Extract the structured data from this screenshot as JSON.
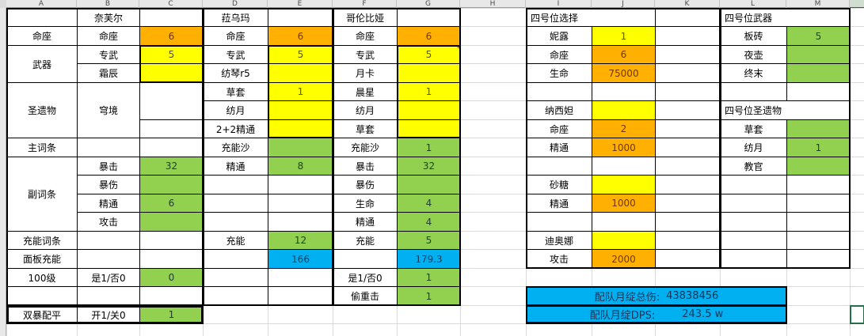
{
  "colors": {
    "orange": "#FFB000",
    "yellow": "#FFFF00",
    "green": "#92D050",
    "blue": "#00B0F0",
    "selection_green": "#217346"
  },
  "column_headers": [
    "A",
    "B",
    "C",
    "D",
    "E",
    "F",
    "G",
    "H",
    "I",
    "J",
    "K",
    "L",
    "M"
  ],
  "tables": [
    {
      "name": "nefer",
      "cells": [
        {
          "r": 1,
          "c": "A",
          "t": ""
        },
        {
          "r": 1,
          "c": "B",
          "t": "奈芙尔"
        },
        {
          "r": 1,
          "c": "C",
          "t": ""
        },
        {
          "r": 2,
          "c": "A",
          "t": "命座"
        },
        {
          "r": 2,
          "c": "B",
          "t": "命座"
        },
        {
          "r": 2,
          "c": "C",
          "t": "6",
          "f": "orange"
        },
        {
          "r": 3,
          "c": "A",
          "t": "武器",
          "rs": 2
        },
        {
          "r": 3,
          "c": "B",
          "t": "专武"
        },
        {
          "r": 3,
          "c": "C",
          "t": "5",
          "f": "yellow"
        },
        {
          "r": 4,
          "c": "B",
          "t": "霜辰"
        },
        {
          "r": 4,
          "c": "C",
          "t": "",
          "f": "yellow"
        },
        {
          "r": 5,
          "c": "A",
          "t": "圣遗物",
          "rs": 3
        },
        {
          "r": 5,
          "c": "B",
          "t": "穹境",
          "rs": 3
        },
        {
          "r": 5,
          "c": "C",
          "t": "",
          "rs": 2
        },
        {
          "r": 7,
          "c": "C",
          "t": ""
        },
        {
          "r": 8,
          "c": "A",
          "t": "主词条"
        },
        {
          "r": 8,
          "c": "B",
          "t": ""
        },
        {
          "r": 8,
          "c": "C",
          "t": ""
        },
        {
          "r": 9,
          "c": "A",
          "t": "副词条",
          "rs": 4
        },
        {
          "r": 9,
          "c": "B",
          "t": "暴击"
        },
        {
          "r": 9,
          "c": "C",
          "t": "32",
          "f": "green"
        },
        {
          "r": 10,
          "c": "B",
          "t": "暴伤"
        },
        {
          "r": 10,
          "c": "C",
          "t": "",
          "f": "green"
        },
        {
          "r": 11,
          "c": "B",
          "t": "精通"
        },
        {
          "r": 11,
          "c": "C",
          "t": "6",
          "f": "green"
        },
        {
          "r": 12,
          "c": "B",
          "t": "攻击"
        },
        {
          "r": 12,
          "c": "C",
          "t": "",
          "f": "green"
        },
        {
          "r": 13,
          "c": "A",
          "t": "充能词条"
        },
        {
          "r": 13,
          "c": "B",
          "t": ""
        },
        {
          "r": 13,
          "c": "C",
          "t": ""
        },
        {
          "r": 14,
          "c": "A",
          "t": "面板充能"
        },
        {
          "r": 14,
          "c": "B",
          "t": ""
        },
        {
          "r": 14,
          "c": "C",
          "t": ""
        },
        {
          "r": 15,
          "c": "A",
          "t": "100级"
        },
        {
          "r": 15,
          "c": "B",
          "t": "是1/否0"
        },
        {
          "r": 15,
          "c": "C",
          "t": "0",
          "f": "green"
        },
        {
          "r": 16,
          "c": "A",
          "t": ""
        },
        {
          "r": 16,
          "c": "B",
          "t": ""
        },
        {
          "r": 16,
          "c": "C",
          "t": ""
        },
        {
          "r": 17,
          "c": "A",
          "t": "双暴配平"
        },
        {
          "r": 17,
          "c": "B",
          "t": "开1/关0"
        },
        {
          "r": 17,
          "c": "C",
          "t": "1",
          "f": "green"
        }
      ]
    },
    {
      "name": "lauma",
      "cells": [
        {
          "r": 1,
          "c": "D",
          "t": "菈乌玛"
        },
        {
          "r": 1,
          "c": "E",
          "t": ""
        },
        {
          "r": 2,
          "c": "D",
          "t": "命座"
        },
        {
          "r": 2,
          "c": "E",
          "t": "6",
          "f": "orange"
        },
        {
          "r": 3,
          "c": "D",
          "t": "专武"
        },
        {
          "r": 3,
          "c": "E",
          "t": "5",
          "f": "yellow"
        },
        {
          "r": 4,
          "c": "D",
          "t": "纺琴r5"
        },
        {
          "r": 4,
          "c": "E",
          "t": "",
          "f": "yellow"
        },
        {
          "r": 5,
          "c": "D",
          "t": "草套"
        },
        {
          "r": 5,
          "c": "E",
          "t": "1",
          "f": "yellow"
        },
        {
          "r": 6,
          "c": "D",
          "t": "纺月"
        },
        {
          "r": 6,
          "c": "E",
          "t": "",
          "f": "yellow"
        },
        {
          "r": 7,
          "c": "D",
          "t": "2+2精通"
        },
        {
          "r": 7,
          "c": "E",
          "t": "",
          "f": "yellow"
        },
        {
          "r": 8,
          "c": "D",
          "t": "充能沙"
        },
        {
          "r": 8,
          "c": "E",
          "t": "",
          "f": "green"
        },
        {
          "r": 9,
          "c": "D",
          "t": "精通"
        },
        {
          "r": 9,
          "c": "E",
          "t": "8",
          "f": "green"
        },
        {
          "r": 10,
          "c": "D",
          "t": ""
        },
        {
          "r": 10,
          "c": "E",
          "t": ""
        },
        {
          "r": 11,
          "c": "D",
          "t": ""
        },
        {
          "r": 11,
          "c": "E",
          "t": ""
        },
        {
          "r": 12,
          "c": "D",
          "t": ""
        },
        {
          "r": 12,
          "c": "E",
          "t": ""
        },
        {
          "r": 13,
          "c": "D",
          "t": "充能"
        },
        {
          "r": 13,
          "c": "E",
          "t": "12",
          "f": "green"
        },
        {
          "r": 14,
          "c": "D",
          "t": ""
        },
        {
          "r": 14,
          "c": "E",
          "t": "166",
          "f": "blue"
        },
        {
          "r": 15,
          "c": "D",
          "t": ""
        },
        {
          "r": 15,
          "c": "E",
          "t": ""
        },
        {
          "r": 16,
          "c": "D",
          "t": ""
        },
        {
          "r": 16,
          "c": "E",
          "t": ""
        }
      ]
    },
    {
      "name": "columbina",
      "cells": [
        {
          "r": 1,
          "c": "F",
          "t": "哥伦比娅"
        },
        {
          "r": 1,
          "c": "G",
          "t": ""
        },
        {
          "r": 2,
          "c": "F",
          "t": "命座"
        },
        {
          "r": 2,
          "c": "G",
          "t": "6",
          "f": "orange"
        },
        {
          "r": 3,
          "c": "F",
          "t": "专武"
        },
        {
          "r": 3,
          "c": "G",
          "t": "5",
          "f": "yellow",
          "m": 1
        },
        {
          "r": 4,
          "c": "F",
          "t": "月卡"
        },
        {
          "r": 4,
          "c": "G",
          "t": "",
          "f": "yellow"
        },
        {
          "r": 5,
          "c": "F",
          "t": "晨星"
        },
        {
          "r": 5,
          "c": "G",
          "t": "1",
          "f": "yellow"
        },
        {
          "r": 6,
          "c": "F",
          "t": "纺月"
        },
        {
          "r": 6,
          "c": "G",
          "t": "",
          "f": "yellow"
        },
        {
          "r": 7,
          "c": "F",
          "t": "草套"
        },
        {
          "r": 7,
          "c": "G",
          "t": "",
          "f": "yellow"
        },
        {
          "r": 8,
          "c": "F",
          "t": "充能沙"
        },
        {
          "r": 8,
          "c": "G",
          "t": "1",
          "f": "green"
        },
        {
          "r": 9,
          "c": "F",
          "t": "暴击"
        },
        {
          "r": 9,
          "c": "G",
          "t": "32",
          "f": "green"
        },
        {
          "r": 10,
          "c": "F",
          "t": "暴伤"
        },
        {
          "r": 10,
          "c": "G",
          "t": "",
          "f": "green"
        },
        {
          "r": 11,
          "c": "F",
          "t": "生命"
        },
        {
          "r": 11,
          "c": "G",
          "t": "4",
          "f": "green"
        },
        {
          "r": 12,
          "c": "F",
          "t": "精通"
        },
        {
          "r": 12,
          "c": "G",
          "t": "4",
          "f": "green"
        },
        {
          "r": 13,
          "c": "F",
          "t": "充能"
        },
        {
          "r": 13,
          "c": "G",
          "t": "5",
          "f": "green"
        },
        {
          "r": 14,
          "c": "F",
          "t": ""
        },
        {
          "r": 14,
          "c": "G",
          "t": "179.3",
          "f": "blue"
        },
        {
          "r": 15,
          "c": "F",
          "t": "是1/否0"
        },
        {
          "r": 15,
          "c": "G",
          "t": "1",
          "f": "green"
        },
        {
          "r": 16,
          "c": "F",
          "t": "偷重击"
        },
        {
          "r": 16,
          "c": "G",
          "t": "1",
          "f": "green"
        }
      ]
    },
    {
      "name": "slot4-selection",
      "cells": [
        {
          "r": 1,
          "c": "I",
          "t": "四号位选择",
          "cs": 2,
          "a": "l"
        },
        {
          "r": 1,
          "c": "K",
          "t": ""
        },
        {
          "r": 2,
          "c": "I",
          "t": "妮露"
        },
        {
          "r": 2,
          "c": "J",
          "t": "1",
          "f": "yellow"
        },
        {
          "r": 2,
          "c": "K",
          "t": ""
        },
        {
          "r": 3,
          "c": "I",
          "t": "命座"
        },
        {
          "r": 3,
          "c": "J",
          "t": "6",
          "f": "orange"
        },
        {
          "r": 3,
          "c": "K",
          "t": ""
        },
        {
          "r": 4,
          "c": "I",
          "t": "生命"
        },
        {
          "r": 4,
          "c": "J",
          "t": "75000",
          "f": "orange"
        },
        {
          "r": 4,
          "c": "K",
          "t": ""
        },
        {
          "r": 5,
          "c": "I",
          "t": ""
        },
        {
          "r": 5,
          "c": "J",
          "t": ""
        },
        {
          "r": 5,
          "c": "K",
          "t": ""
        },
        {
          "r": 6,
          "c": "I",
          "t": "纳西妲"
        },
        {
          "r": 6,
          "c": "J",
          "t": "",
          "f": "yellow"
        },
        {
          "r": 6,
          "c": "K",
          "t": ""
        },
        {
          "r": 7,
          "c": "I",
          "t": "命座"
        },
        {
          "r": 7,
          "c": "J",
          "t": "2",
          "f": "orange"
        },
        {
          "r": 7,
          "c": "K",
          "t": ""
        },
        {
          "r": 8,
          "c": "I",
          "t": "精通"
        },
        {
          "r": 8,
          "c": "J",
          "t": "1000",
          "f": "orange"
        },
        {
          "r": 8,
          "c": "K",
          "t": ""
        },
        {
          "r": 9,
          "c": "I",
          "t": ""
        },
        {
          "r": 9,
          "c": "J",
          "t": ""
        },
        {
          "r": 9,
          "c": "K",
          "t": ""
        },
        {
          "r": 10,
          "c": "I",
          "t": "砂糖"
        },
        {
          "r": 10,
          "c": "J",
          "t": "",
          "f": "yellow"
        },
        {
          "r": 10,
          "c": "K",
          "t": ""
        },
        {
          "r": 11,
          "c": "I",
          "t": "精通"
        },
        {
          "r": 11,
          "c": "J",
          "t": "1000",
          "f": "orange"
        },
        {
          "r": 11,
          "c": "K",
          "t": ""
        },
        {
          "r": 12,
          "c": "I",
          "t": ""
        },
        {
          "r": 12,
          "c": "J",
          "t": ""
        },
        {
          "r": 12,
          "c": "K",
          "t": ""
        },
        {
          "r": 13,
          "c": "I",
          "t": "迪奥娜"
        },
        {
          "r": 13,
          "c": "J",
          "t": "",
          "f": "yellow"
        },
        {
          "r": 13,
          "c": "K",
          "t": ""
        },
        {
          "r": 14,
          "c": "I",
          "t": "攻击"
        },
        {
          "r": 14,
          "c": "J",
          "t": "2000",
          "f": "orange"
        },
        {
          "r": 14,
          "c": "K",
          "t": ""
        }
      ]
    },
    {
      "name": "slot4-weapon-artifact",
      "cells": [
        {
          "r": 1,
          "c": "L",
          "t": "四号位武器",
          "cs": 2,
          "a": "l"
        },
        {
          "r": 2,
          "c": "L",
          "t": "板砖"
        },
        {
          "r": 2,
          "c": "M",
          "t": "5",
          "f": "green"
        },
        {
          "r": 3,
          "c": "L",
          "t": "夜壶"
        },
        {
          "r": 3,
          "c": "M",
          "t": "",
          "f": "green"
        },
        {
          "r": 4,
          "c": "L",
          "t": "终末"
        },
        {
          "r": 4,
          "c": "M",
          "t": "",
          "f": "green"
        },
        {
          "r": 5,
          "c": "L",
          "t": ""
        },
        {
          "r": 5,
          "c": "M",
          "t": ""
        },
        {
          "r": 6,
          "c": "L",
          "t": "四号位圣遗物",
          "cs": 2,
          "a": "l"
        },
        {
          "r": 7,
          "c": "L",
          "t": "草套"
        },
        {
          "r": 7,
          "c": "M",
          "t": "",
          "f": "green"
        },
        {
          "r": 8,
          "c": "L",
          "t": "纺月"
        },
        {
          "r": 8,
          "c": "M",
          "t": "1",
          "f": "green"
        },
        {
          "r": 9,
          "c": "L",
          "t": "教官"
        },
        {
          "r": 9,
          "c": "M",
          "t": "",
          "f": "green"
        },
        {
          "r": 10,
          "c": "L",
          "t": ""
        },
        {
          "r": 10,
          "c": "M",
          "t": ""
        },
        {
          "r": 11,
          "c": "L",
          "t": ""
        },
        {
          "r": 11,
          "c": "M",
          "t": ""
        },
        {
          "r": 12,
          "c": "L",
          "t": ""
        },
        {
          "r": 12,
          "c": "M",
          "t": ""
        },
        {
          "r": 13,
          "c": "L",
          "t": ""
        },
        {
          "r": 13,
          "c": "M",
          "t": ""
        },
        {
          "r": 14,
          "c": "L",
          "t": ""
        },
        {
          "r": 14,
          "c": "M",
          "t": ""
        }
      ]
    }
  ],
  "summary": {
    "total_label": "配队月绽总伤:",
    "total_value": "43838456",
    "dps_label": "配队月绽DPS:",
    "dps_value": "243.5 w"
  }
}
